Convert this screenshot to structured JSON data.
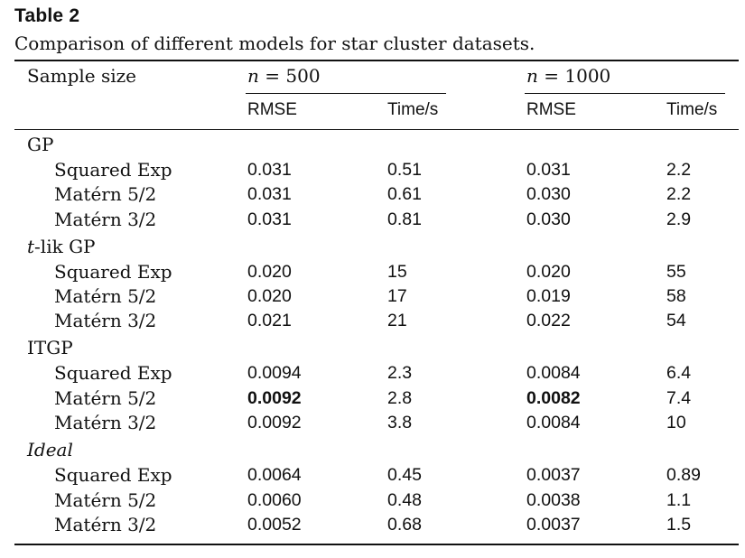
{
  "title": "Table 2",
  "caption": "Comparison of different models for star cluster datasets.",
  "header": {
    "sample_size": "Sample size",
    "n500_var": "n",
    "n500_rest": " = 500",
    "n1000_var": "n",
    "n1000_rest": " = 1000",
    "rmse": "RMSE",
    "time": "Time/s"
  },
  "groups": [
    {
      "name": "GP",
      "rows": [
        {
          "model": "Squared Exp",
          "rmse500": "0.031",
          "time500": "0.51",
          "rmse1000": "0.031",
          "time1000": "2.2"
        },
        {
          "model": "Matérn 5/2",
          "rmse500": "0.031",
          "time500": "0.61",
          "rmse1000": "0.030",
          "time1000": "2.2"
        },
        {
          "model": "Matérn 3/2",
          "rmse500": "0.031",
          "time500": "0.81",
          "rmse1000": "0.030",
          "time1000": "2.9"
        }
      ]
    },
    {
      "name_italic_part": "t",
      "name_rest": "-lik GP",
      "rows": [
        {
          "model": "Squared Exp",
          "rmse500": "0.020",
          "time500": "15",
          "rmse1000": "0.020",
          "time1000": "55"
        },
        {
          "model": "Matérn 5/2",
          "rmse500": "0.020",
          "time500": "17",
          "rmse1000": "0.019",
          "time1000": "58"
        },
        {
          "model": "Matérn 3/2",
          "rmse500": "0.021",
          "time500": "21",
          "rmse1000": "0.022",
          "time1000": "54"
        }
      ]
    },
    {
      "name": "ITGP",
      "rows": [
        {
          "model": "Squared Exp",
          "rmse500": "0.0094",
          "time500": "2.3",
          "rmse1000": "0.0084",
          "time1000": "6.4"
        },
        {
          "model": "Matérn 5/2",
          "rmse500": "0.0092",
          "time500": "2.8",
          "rmse1000": "0.0082",
          "time1000": "7.4"
        },
        {
          "model": "Matérn 3/2",
          "rmse500": "0.0092",
          "time500": "3.8",
          "rmse1000": "0.0084",
          "time1000": "10"
        }
      ]
    },
    {
      "name": "Ideal",
      "rows": [
        {
          "model": "Squared Exp",
          "rmse500": "0.0064",
          "time500": "0.45",
          "rmse1000": "0.0037",
          "time1000": "0.89"
        },
        {
          "model": "Matérn 5/2",
          "rmse500": "0.0060",
          "time500": "0.48",
          "rmse1000": "0.0038",
          "time1000": "1.1"
        },
        {
          "model": "Matérn 3/2",
          "rmse500": "0.0052",
          "time500": "0.68",
          "rmse1000": "0.0037",
          "time1000": "1.5"
        }
      ]
    }
  ]
}
